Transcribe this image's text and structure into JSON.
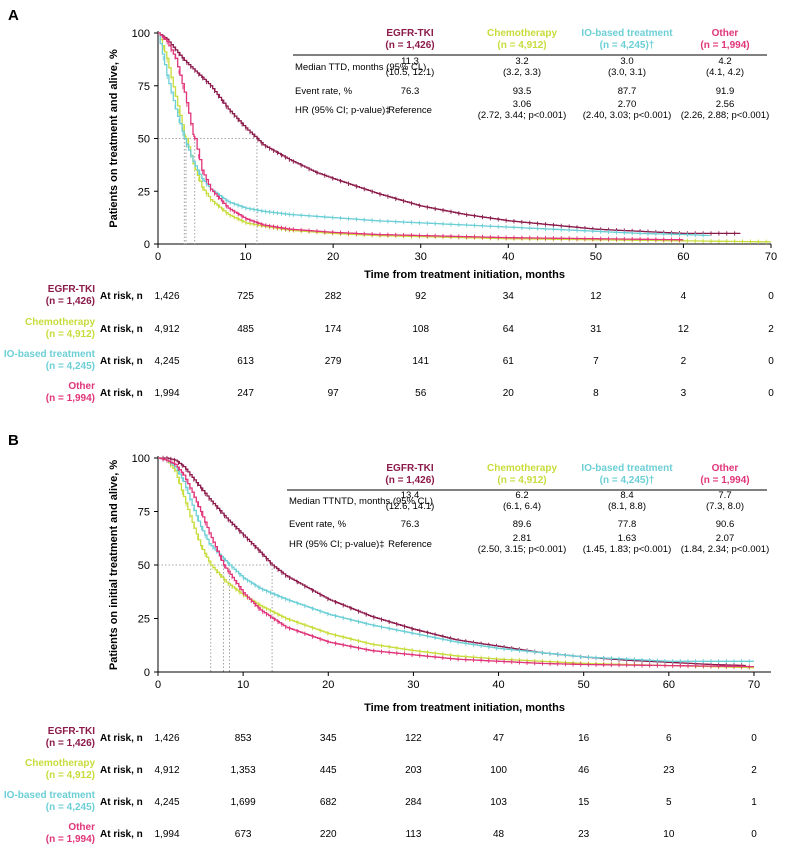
{
  "colors": {
    "egfr": "#8B1A4A",
    "chemo": "#C8DC3C",
    "io": "#6CCFD6",
    "other": "#E0357A",
    "ref": "#8a8a8a"
  },
  "panels": [
    {
      "letter": "A",
      "ylabel": "Patients on treatment and alive, %",
      "xlabel": "Time from treatment initiation, months",
      "table": {
        "headers": [
          {
            "name": "EGFR-TKI",
            "n": "(n = 1,426)",
            "color": "egfr"
          },
          {
            "name": "Chemotherapy",
            "n": "(n = 4,912)",
            "color": "chemo"
          },
          {
            "name": "IO-based treatment",
            "n": "(n = 4,245)†",
            "color": "io"
          },
          {
            "name": "Other",
            "n": "(n = 1,994)",
            "color": "other"
          }
        ],
        "rows": [
          {
            "label": "Median TTD, months (95% CL)",
            "cells": [
              [
                "11.3",
                "(10.5, 12.1)"
              ],
              [
                "3.2",
                "(3.2, 3.3)"
              ],
              [
                "3.0",
                "(3.0, 3.1)"
              ],
              [
                "4.2",
                "(4.1, 4.2)"
              ]
            ]
          },
          {
            "label": "Event rate, %",
            "cells": [
              [
                "76.3"
              ],
              [
                "93.5"
              ],
              [
                "87.7"
              ],
              [
                "91.9"
              ]
            ]
          },
          {
            "label": "HR (95% CI; p-value)‡",
            "cells": [
              [
                "Reference"
              ],
              [
                "3.06",
                "(2.72, 3.44; p<0.001)"
              ],
              [
                "2.70",
                "(2.40, 3.03; p<0.001)"
              ],
              [
                "2.56",
                "(2.26, 2.88; p<0.001)"
              ]
            ]
          }
        ]
      },
      "at_risk": {
        "label": "At risk, n",
        "groups": [
          {
            "name": "EGFR-TKI",
            "n": "(n = 1,426)",
            "color": "egfr",
            "values": [
              "1,426",
              "725",
              "282",
              "92",
              "34",
              "12",
              "4",
              "0"
            ]
          },
          {
            "name": "Chemotherapy",
            "n": "(n = 4,912)",
            "color": "chemo",
            "values": [
              "4,912",
              "485",
              "174",
              "108",
              "64",
              "31",
              "12",
              "2"
            ]
          },
          {
            "name": "IO-based treatment",
            "n": "(n = 4,245)",
            "color": "io",
            "values": [
              "4,245",
              "613",
              "279",
              "141",
              "61",
              "7",
              "2",
              "0"
            ]
          },
          {
            "name": "Other",
            "n": "(n = 1,994)",
            "color": "other",
            "values": [
              "1,994",
              "247",
              "97",
              "56",
              "20",
              "8",
              "3",
              "0"
            ]
          }
        ]
      }
    },
    {
      "letter": "B",
      "ylabel": "Patients on initial treatment and alive, %",
      "xlabel": "Time from treatment initiation, months",
      "table": {
        "headers": [
          {
            "name": "EGFR-TKI",
            "n": "(n = 1,426)",
            "color": "egfr"
          },
          {
            "name": "Chemotherapy",
            "n": "(n = 4,912)",
            "color": "chemo"
          },
          {
            "name": "IO-based treatment",
            "n": "(n = 4,245)†",
            "color": "io"
          },
          {
            "name": "Other",
            "n": "(n = 1,994)",
            "color": "other"
          }
        ],
        "rows": [
          {
            "label": "Median TTNTD, months (95% CL)",
            "cells": [
              [
                "13.4",
                "(12.6, 14.1)"
              ],
              [
                "6.2",
                "(6.1, 6.4)"
              ],
              [
                "8.4",
                "(8.1, 8.8)"
              ],
              [
                "7.7",
                "(7.3, 8.0)"
              ]
            ]
          },
          {
            "label": "Event rate, %",
            "cells": [
              [
                "76.3"
              ],
              [
                "89.6"
              ],
              [
                "77.8"
              ],
              [
                "90.6"
              ]
            ]
          },
          {
            "label": "HR (95% CI; p-value)‡",
            "cells": [
              [
                "Reference"
              ],
              [
                "2.81",
                "(2.50, 3.15; p<0.001)"
              ],
              [
                "1.63",
                "(1.45, 1.83; p<0.001)"
              ],
              [
                "2.07",
                "(1.84, 2.34; p<0.001)"
              ]
            ]
          }
        ]
      },
      "at_risk": {
        "label": "At risk, n",
        "groups": [
          {
            "name": "EGFR-TKI",
            "n": "(n = 1,426)",
            "color": "egfr",
            "values": [
              "1,426",
              "853",
              "345",
              "122",
              "47",
              "16",
              "6",
              "0"
            ]
          },
          {
            "name": "Chemotherapy",
            "n": "(n = 4,912)",
            "color": "chemo",
            "values": [
              "4,912",
              "1,353",
              "445",
              "203",
              "100",
              "46",
              "23",
              "2"
            ]
          },
          {
            "name": "IO-based treatment",
            "n": "(n = 4,245)",
            "color": "io",
            "values": [
              "4,245",
              "1,699",
              "682",
              "284",
              "103",
              "15",
              "5",
              "1"
            ]
          },
          {
            "name": "Other",
            "n": "(n = 1,994)",
            "color": "other",
            "values": [
              "1,994",
              "673",
              "220",
              "113",
              "48",
              "23",
              "10",
              "0"
            ]
          }
        ]
      }
    }
  ],
  "chart_data": [
    {
      "type": "line",
      "xlabel": "Time from treatment initiation, months",
      "ylabel": "Patients on treatment and alive, %",
      "xlim": [
        0,
        70
      ],
      "ylim": [
        0,
        100
      ],
      "xticks": [
        0,
        10,
        20,
        30,
        40,
        50,
        60,
        70
      ],
      "yticks": [
        0,
        25,
        50,
        75,
        100
      ],
      "medians": [
        {
          "x": 11.3,
          "color": "egfr"
        },
        {
          "x": 3.2,
          "color": "chemo"
        },
        {
          "x": 3.0,
          "color": "io"
        },
        {
          "x": 4.2,
          "color": "other"
        }
      ],
      "series": [
        {
          "name": "EGFR-TKI",
          "color": "egfr",
          "x": [
            0,
            1,
            2,
            3,
            4,
            5,
            6,
            8,
            10,
            11.3,
            12,
            15,
            18,
            20,
            25,
            30,
            35,
            40,
            45,
            50,
            55,
            60,
            66.5
          ],
          "y": [
            100,
            97,
            92,
            87,
            83,
            79,
            75,
            64,
            55,
            50,
            47,
            40,
            34,
            31,
            24,
            18,
            14,
            11,
            9,
            7,
            6,
            5,
            5
          ]
        },
        {
          "name": "Chemotherapy",
          "color": "chemo",
          "x": [
            0,
            1,
            2,
            3,
            3.2,
            4,
            5,
            6,
            8,
            10,
            12,
            15,
            20,
            25,
            30,
            40,
            50,
            60,
            70
          ],
          "y": [
            100,
            88,
            70,
            52,
            50,
            38,
            27,
            21,
            14,
            10,
            8.5,
            6.5,
            5,
            4,
            3.5,
            2.5,
            2,
            1.5,
            1
          ]
        },
        {
          "name": "IO-based treatment",
          "color": "io",
          "x": [
            0,
            1,
            2,
            3,
            4,
            5,
            6,
            8,
            10,
            12,
            15,
            20,
            25,
            30,
            35,
            40,
            45,
            50,
            55,
            60,
            63
          ],
          "y": [
            100,
            80,
            64,
            50,
            39,
            31,
            26,
            20,
            17,
            15.5,
            14,
            12.5,
            11,
            10,
            9,
            8,
            7,
            6,
            5,
            4.5,
            4
          ]
        },
        {
          "name": "Other",
          "color": "other",
          "x": [
            0,
            1,
            2,
            3,
            4,
            4.2,
            5,
            6,
            8,
            10,
            12,
            15,
            20,
            25,
            30,
            40,
            50,
            60
          ],
          "y": [
            100,
            96,
            88,
            72,
            52,
            50,
            35,
            26,
            17,
            12,
            9,
            7,
            5.5,
            4.5,
            4,
            3,
            2.5,
            2
          ]
        }
      ]
    },
    {
      "type": "line",
      "xlabel": "Time from treatment initiation, months",
      "ylabel": "Patients on initial treatment and alive, %",
      "xlim": [
        0,
        72
      ],
      "ylim": [
        0,
        100
      ],
      "xticks": [
        0,
        10,
        20,
        30,
        40,
        50,
        60,
        70
      ],
      "yticks": [
        0,
        25,
        50,
        75,
        100
      ],
      "medians": [
        {
          "x": 13.4,
          "color": "egfr"
        },
        {
          "x": 6.2,
          "color": "chemo"
        },
        {
          "x": 8.4,
          "color": "io"
        },
        {
          "x": 7.7,
          "color": "other"
        }
      ],
      "series": [
        {
          "name": "EGFR-TKI",
          "color": "egfr",
          "x": [
            0,
            1,
            2,
            3,
            4,
            5,
            6,
            8,
            10,
            12,
            13.4,
            15,
            20,
            25,
            30,
            35,
            40,
            45,
            50,
            55,
            60,
            65,
            69
          ],
          "y": [
            100,
            100,
            99,
            96,
            91,
            86,
            81,
            72,
            64,
            56,
            50,
            45,
            34,
            26,
            20,
            15,
            12,
            9,
            7,
            5.5,
            4.5,
            3.5,
            3
          ]
        },
        {
          "name": "Chemotherapy",
          "color": "chemo",
          "x": [
            0,
            1,
            2,
            3,
            4,
            5,
            6.2,
            8,
            10,
            12,
            15,
            20,
            25,
            30,
            35,
            40,
            45,
            50,
            60,
            70
          ],
          "y": [
            100,
            99,
            94,
            82,
            70,
            59,
            50,
            42,
            36,
            31,
            25,
            18,
            13,
            10,
            7.5,
            6,
            5,
            4,
            3,
            2
          ]
        },
        {
          "name": "IO-based treatment",
          "color": "io",
          "x": [
            0,
            1,
            2,
            3,
            4,
            5,
            6,
            8.4,
            10,
            12,
            15,
            20,
            25,
            30,
            35,
            40,
            45,
            50,
            55,
            60,
            65,
            70
          ],
          "y": [
            100,
            99,
            96,
            89,
            78,
            68,
            60,
            50,
            44,
            39,
            34,
            27,
            22,
            18,
            14,
            11,
            9,
            7,
            6,
            5,
            5,
            5
          ]
        },
        {
          "name": "Other",
          "color": "other",
          "x": [
            0,
            1,
            2,
            3,
            4,
            5,
            6,
            7.7,
            10,
            12,
            15,
            20,
            25,
            30,
            35,
            40,
            45,
            50,
            60,
            70
          ],
          "y": [
            100,
            99,
            97,
            92,
            84,
            75,
            65,
            50,
            37,
            29,
            21,
            14,
            10,
            8,
            6,
            5,
            4,
            3.5,
            3,
            2.5
          ]
        }
      ]
    }
  ]
}
